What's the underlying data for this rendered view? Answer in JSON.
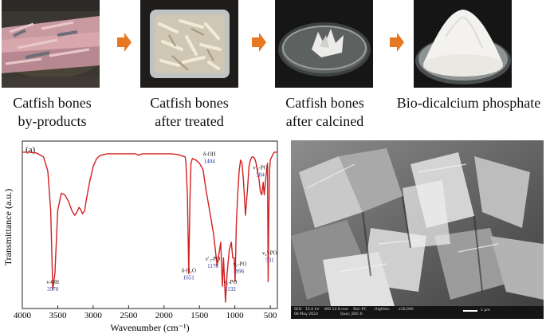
{
  "process": {
    "steps": [
      {
        "line1": "Catfish bones",
        "line2": "by-products"
      },
      {
        "line1": "Catfish bones",
        "line2": "after treated"
      },
      {
        "line1": "Catfish bones",
        "line2": "after calcined"
      },
      {
        "line1": "Bio-dicalcium phosphate",
        "line2": ""
      }
    ],
    "arrow_color": "#e87722"
  },
  "chart_data": {
    "type": "line",
    "panel_label": "(a)",
    "xlabel": "Wavenumber (cm⁻¹)",
    "ylabel": "Transmittance (a.u.)",
    "xlim": [
      4000,
      400
    ],
    "xticks": [
      4000,
      3500,
      3000,
      2500,
      2000,
      1500,
      1000,
      500
    ],
    "ylim": [
      0,
      1
    ],
    "line_color": "#d42020",
    "peak_value_color": "#1f2f9a",
    "series": [
      {
        "x": [
          4000,
          3900,
          3800,
          3700,
          3640,
          3600,
          3570,
          3540,
          3500,
          3450,
          3400,
          3350,
          3300,
          3260,
          3230,
          3200,
          3180,
          3150,
          3120,
          3100,
          3050,
          3000,
          2950,
          2900,
          2800,
          2600,
          2400,
          2360,
          2340,
          2300,
          2100,
          1900,
          1800,
          1700,
          1690,
          1670,
          1651,
          1635,
          1620,
          1600,
          1550,
          1500,
          1450,
          1404,
          1380,
          1300,
          1250,
          1200,
          1176,
          1160,
          1150,
          1132,
          1110,
          1100,
          1080,
          1050,
          1030,
          1010,
          996,
          980,
          960,
          940,
          920,
          900,
          880,
          850,
          820,
          800,
          780,
          760,
          740,
          720,
          700,
          680,
          660,
          640,
          620,
          600,
          590,
          584,
          575,
          560,
          540,
          531,
          520,
          510,
          500,
          480,
          460,
          440,
          420,
          400
        ],
        "y": [
          0.97,
          0.97,
          0.965,
          0.94,
          0.85,
          0.6,
          0.1,
          0.2,
          0.6,
          0.71,
          0.7,
          0.66,
          0.6,
          0.57,
          0.59,
          0.62,
          0.61,
          0.58,
          0.6,
          0.66,
          0.78,
          0.88,
          0.93,
          0.95,
          0.96,
          0.96,
          0.96,
          0.95,
          0.955,
          0.96,
          0.96,
          0.96,
          0.955,
          0.94,
          0.9,
          0.7,
          0.2,
          0.65,
          0.9,
          0.93,
          0.92,
          0.9,
          0.86,
          0.72,
          0.66,
          0.45,
          0.25,
          0.4,
          0.12,
          0.3,
          0.2,
          0.02,
          0.2,
          0.25,
          0.35,
          0.4,
          0.3,
          0.3,
          0.15,
          0.5,
          0.7,
          0.85,
          0.92,
          0.9,
          0.8,
          0.57,
          0.75,
          0.88,
          0.92,
          0.94,
          0.94,
          0.93,
          0.9,
          0.85,
          0.8,
          0.72,
          0.7,
          0.78,
          0.72,
          0.7,
          0.75,
          0.82,
          0.9,
          0.15,
          0.6,
          0.85,
          0.92,
          0.94,
          0.96,
          0.97,
          0.97,
          0.97
        ]
      }
    ],
    "annotations": [
      {
        "top": "ν-OH",
        "value": "3570",
        "x": 3570
      },
      {
        "top": "δ-H₂O",
        "value": "1651",
        "x": 1651
      },
      {
        "top": "δ-OH",
        "value": "1404",
        "x": 1404
      },
      {
        "top": "ν′₃-PO",
        "value": "1176",
        "x": 1176
      },
      {
        "top": "ν₃-PO",
        "value": "1132",
        "x": 1132
      },
      {
        "top": "ν₁-PO",
        "value": "996",
        "x": 996
      },
      {
        "top": "ν′₄-PO",
        "value": "584",
        "x": 584
      },
      {
        "top": "ν₄′-PO",
        "value": "531",
        "x": 531
      }
    ]
  },
  "sem": {
    "info_line1": [
      "SED",
      "15.0 kV",
      "WD 12.8 mm",
      "Std.-PC",
      "HighVac.",
      "x10,000"
    ],
    "info_line2": [
      "06 May 2023",
      "Quoc_60C-6"
    ],
    "scale_label": "1 μm"
  }
}
